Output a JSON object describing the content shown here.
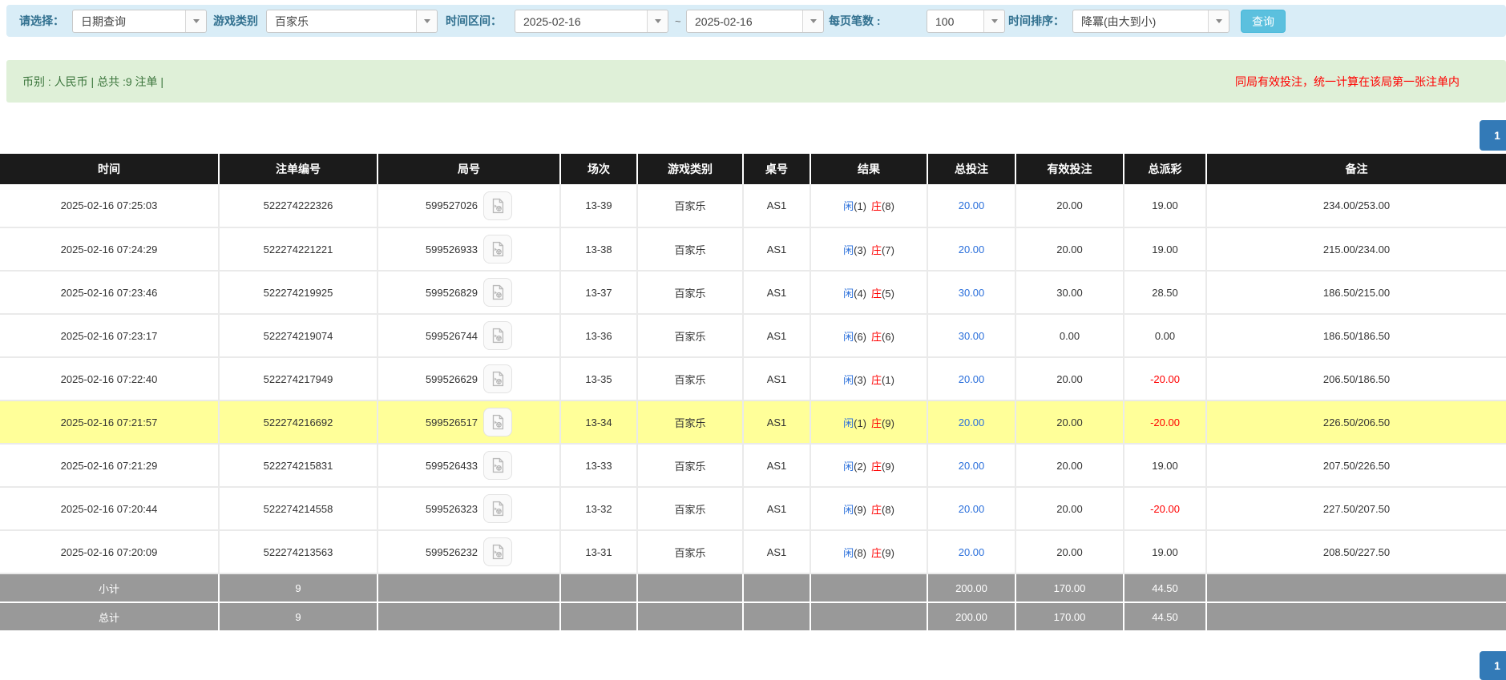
{
  "toolbar": {
    "select_label": "请选择：",
    "select_value": "日期查询",
    "game_label": "游戏类别",
    "game_value": "百家乐",
    "range_label": "时间区间：",
    "date_from": "2025-02-16",
    "tilde": "~",
    "date_to": "2025-02-16",
    "pagesize_label": "每页笔数 :",
    "pagesize_value": "100",
    "sort_label": "时间排序：",
    "sort_value": "降冪(由大到小)",
    "query_button": "查询"
  },
  "summary_bar": {
    "left_text": "币别 : 人民币 | 总共 :9 注单 |",
    "right_notice": "同局有效投注，统一计算在该局第一张注单内"
  },
  "pagination": {
    "page": "1"
  },
  "table": {
    "headers": [
      "时间",
      "注单编号",
      "局号",
      "场次",
      "游戏类别",
      "桌号",
      "结果",
      "总投注",
      "有效投注",
      "总派彩",
      "备注"
    ],
    "rows": [
      {
        "time": "2025-02-16 07:25:03",
        "bet_no": "522274222326",
        "round_no": "599527026",
        "session": "13-39",
        "game": "百家乐",
        "table_no": "AS1",
        "result_player": "闲",
        "result_player_num": "(1)",
        "result_banker": "庄",
        "result_banker_num": "(8)",
        "total_bet": "20.00",
        "valid_bet": "20.00",
        "payout": "19.00",
        "payout_negative": false,
        "remark": "234.00/253.00",
        "highlight": false
      },
      {
        "time": "2025-02-16 07:24:29",
        "bet_no": "522274221221",
        "round_no": "599526933",
        "session": "13-38",
        "game": "百家乐",
        "table_no": "AS1",
        "result_player": "闲",
        "result_player_num": "(3)",
        "result_banker": "庄",
        "result_banker_num": "(7)",
        "total_bet": "20.00",
        "valid_bet": "20.00",
        "payout": "19.00",
        "payout_negative": false,
        "remark": "215.00/234.00",
        "highlight": false
      },
      {
        "time": "2025-02-16 07:23:46",
        "bet_no": "522274219925",
        "round_no": "599526829",
        "session": "13-37",
        "game": "百家乐",
        "table_no": "AS1",
        "result_player": "闲",
        "result_player_num": "(4)",
        "result_banker": "庄",
        "result_banker_num": "(5)",
        "total_bet": "30.00",
        "valid_bet": "30.00",
        "payout": "28.50",
        "payout_negative": false,
        "remark": "186.50/215.00",
        "highlight": false
      },
      {
        "time": "2025-02-16 07:23:17",
        "bet_no": "522274219074",
        "round_no": "599526744",
        "session": "13-36",
        "game": "百家乐",
        "table_no": "AS1",
        "result_player": "闲",
        "result_player_num": "(6)",
        "result_banker": "庄",
        "result_banker_num": "(6)",
        "total_bet": "30.00",
        "valid_bet": "0.00",
        "payout": "0.00",
        "payout_negative": false,
        "remark": "186.50/186.50",
        "highlight": false
      },
      {
        "time": "2025-02-16 07:22:40",
        "bet_no": "522274217949",
        "round_no": "599526629",
        "session": "13-35",
        "game": "百家乐",
        "table_no": "AS1",
        "result_player": "闲",
        "result_player_num": "(3)",
        "result_banker": "庄",
        "result_banker_num": "(1)",
        "total_bet": "20.00",
        "valid_bet": "20.00",
        "payout": "-20.00",
        "payout_negative": true,
        "remark": "206.50/186.50",
        "highlight": false
      },
      {
        "time": "2025-02-16 07:21:57",
        "bet_no": "522274216692",
        "round_no": "599526517",
        "session": "13-34",
        "game": "百家乐",
        "table_no": "AS1",
        "result_player": "闲",
        "result_player_num": "(1)",
        "result_banker": "庄",
        "result_banker_num": "(9)",
        "total_bet": "20.00",
        "valid_bet": "20.00",
        "payout": "-20.00",
        "payout_negative": true,
        "remark": "226.50/206.50",
        "highlight": true
      },
      {
        "time": "2025-02-16 07:21:29",
        "bet_no": "522274215831",
        "round_no": "599526433",
        "session": "13-33",
        "game": "百家乐",
        "table_no": "AS1",
        "result_player": "闲",
        "result_player_num": "(2)",
        "result_banker": "庄",
        "result_banker_num": "(9)",
        "total_bet": "20.00",
        "valid_bet": "20.00",
        "payout": "19.00",
        "payout_negative": false,
        "remark": "207.50/226.50",
        "highlight": false
      },
      {
        "time": "2025-02-16 07:20:44",
        "bet_no": "522274214558",
        "round_no": "599526323",
        "session": "13-32",
        "game": "百家乐",
        "table_no": "AS1",
        "result_player": "闲",
        "result_player_num": "(9)",
        "result_banker": "庄",
        "result_banker_num": "(8)",
        "total_bet": "20.00",
        "valid_bet": "20.00",
        "payout": "-20.00",
        "payout_negative": true,
        "remark": "227.50/207.50",
        "highlight": false
      },
      {
        "time": "2025-02-16 07:20:09",
        "bet_no": "522274213563",
        "round_no": "599526232",
        "session": "13-31",
        "game": "百家乐",
        "table_no": "AS1",
        "result_player": "闲",
        "result_player_num": "(8)",
        "result_banker": "庄",
        "result_banker_num": "(9)",
        "total_bet": "20.00",
        "valid_bet": "20.00",
        "payout": "19.00",
        "payout_negative": false,
        "remark": "208.50/227.50",
        "highlight": false
      }
    ],
    "subtotal": {
      "label": "小计",
      "count": "9",
      "total_bet": "200.00",
      "valid_bet": "170.00",
      "payout": "44.50"
    },
    "total": {
      "label": "总计",
      "count": "9",
      "total_bet": "200.00",
      "valid_bet": "170.00",
      "payout": "44.50"
    }
  },
  "colors": {
    "toolbar_bg": "#d9edf7",
    "label_blue": "#31708f",
    "query_button_bg": "#5bc0de",
    "summary_bg": "#dff0d8",
    "summary_text_green": "#3c763d",
    "notice_red": "#ff0000",
    "header_bg": "#1b1b1b",
    "link_blue": "#2a6fdb",
    "banker_red": "#ff0000",
    "negative_red": "#ff0000",
    "highlight_yellow": "#ffff99",
    "subtotal_bg": "#999999",
    "pagination_blue": "#337ab7"
  }
}
